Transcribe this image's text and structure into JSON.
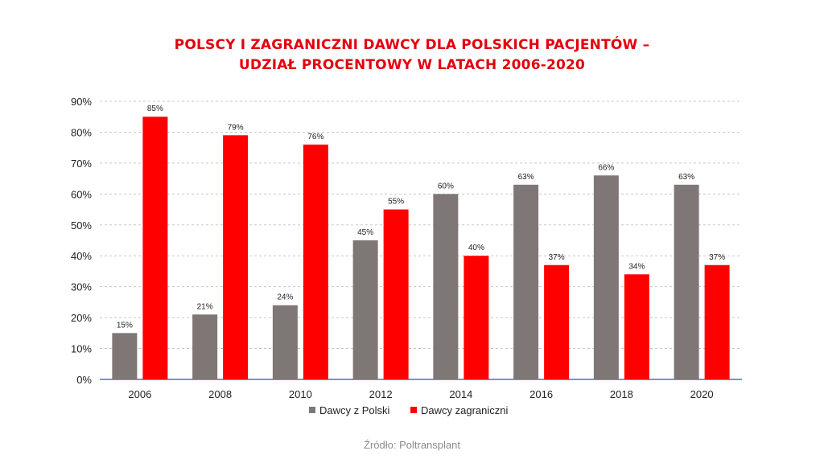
{
  "chart_data": {
    "type": "bar",
    "title": [
      "POLSCY I ZAGRANICZNI DAWCY DLA POLSKICH PACJENTÓW –",
      "UDZIAŁ PROCENTOWY W LATACH 2006-2020"
    ],
    "categories": [
      "2006",
      "2008",
      "2010",
      "2012",
      "2014",
      "2016",
      "2018",
      "2020"
    ],
    "series": [
      {
        "name": "Dawcy z Polski",
        "color": "#7f7776",
        "values": [
          15,
          21,
          24,
          45,
          60,
          63,
          66,
          63
        ]
      },
      {
        "name": "Dawcy zagraniczni",
        "color": "#ff0000",
        "values": [
          85,
          79,
          76,
          55,
          40,
          37,
          34,
          37
        ]
      }
    ],
    "ylim": [
      0,
      90
    ],
    "yticks": [
      0,
      10,
      20,
      30,
      40,
      50,
      60,
      70,
      80,
      90
    ],
    "ytick_labels": [
      "0%",
      "10%",
      "20%",
      "30%",
      "40%",
      "50%",
      "60%",
      "70%",
      "80%",
      "90%"
    ],
    "value_suffix": "%",
    "grid": true,
    "legend_position": "bottom",
    "source": "Źródło: Poltransplant"
  }
}
